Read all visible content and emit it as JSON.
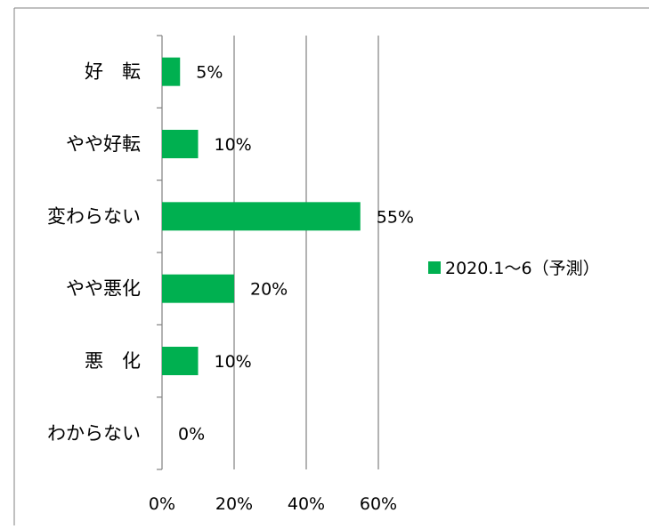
{
  "chart_data": {
    "type": "bar",
    "orientation": "horizontal",
    "categories": [
      "好　転",
      "やや好転",
      "変わらない",
      "やや悪化",
      "悪　化",
      "わからない"
    ],
    "series": [
      {
        "name": "2020.1～6（予測）",
        "values": [
          5,
          10,
          55,
          20,
          10,
          0
        ],
        "data_labels": [
          "5%",
          "10%",
          "55%",
          "20%",
          "10%",
          "0%"
        ]
      }
    ],
    "xlim": [
      0,
      60
    ],
    "xticks": [
      0,
      20,
      40,
      60
    ],
    "xtick_labels": [
      "0%",
      "20%",
      "40%",
      "60%"
    ],
    "grid": true,
    "legend_position": "right",
    "title": "",
    "xlabel": "",
    "ylabel": ""
  },
  "colors": {
    "bar": "#00b050",
    "grid": "#808080",
    "frame": "#808080",
    "text": "#000000"
  }
}
